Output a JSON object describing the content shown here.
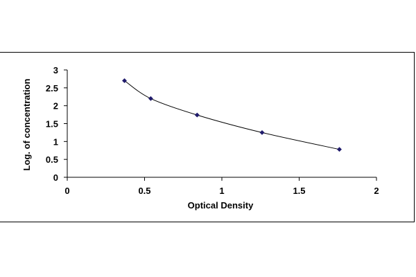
{
  "chart_data": {
    "type": "scatter",
    "title": "",
    "xlabel": "Optical Density",
    "ylabel": "Log. of concentration",
    "xlim": [
      0,
      2
    ],
    "ylim": [
      0,
      3
    ],
    "x_ticks": [
      "0",
      "0.5",
      "1",
      "1.5",
      "2"
    ],
    "y_ticks": [
      "0",
      "0.5",
      "1",
      "1.5",
      "2",
      "2.5",
      "3"
    ],
    "grid": false,
    "legend": "none",
    "trendline": true,
    "colors": {
      "marker": "#1f1a6b",
      "line": "#000000",
      "axis": "#000000"
    },
    "series": [
      {
        "x": [
          0.37,
          0.54,
          0.84,
          1.26,
          1.76
        ],
        "y": [
          2.7,
          2.2,
          1.74,
          1.25,
          0.78
        ]
      }
    ]
  }
}
